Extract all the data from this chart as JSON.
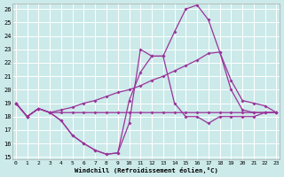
{
  "xlabel": "Windchill (Refroidissement éolien,°C)",
  "xlim": [
    -0.3,
    23.3
  ],
  "ylim": [
    14.8,
    26.4
  ],
  "yticks": [
    15,
    16,
    17,
    18,
    19,
    20,
    21,
    22,
    23,
    24,
    25,
    26
  ],
  "xticks": [
    0,
    1,
    2,
    3,
    4,
    5,
    6,
    7,
    8,
    9,
    10,
    11,
    12,
    13,
    14,
    15,
    16,
    17,
    18,
    19,
    20,
    21,
    22,
    23
  ],
  "background_color": "#cceaea",
  "line_color": "#993399",
  "grid_color": "#ffffff",
  "line1_y": [
    19.0,
    18.0,
    18.6,
    18.3,
    17.7,
    16.6,
    16.0,
    15.5,
    15.2,
    15.3,
    17.5,
    23.0,
    22.5,
    22.5,
    19.0,
    18.0,
    18.0,
    17.5,
    18.0,
    18.0,
    18.0,
    18.0,
    18.3,
    18.3
  ],
  "line2_y": [
    19.0,
    18.0,
    18.6,
    18.3,
    17.7,
    16.6,
    16.0,
    15.5,
    15.2,
    15.3,
    19.2,
    21.3,
    22.5,
    22.5,
    24.3,
    26.0,
    26.3,
    25.2,
    22.8,
    20.0,
    18.5,
    18.3,
    18.3,
    18.3
  ],
  "line3_y": [
    19.0,
    18.0,
    18.6,
    18.3,
    18.3,
    18.3,
    18.3,
    18.3,
    18.3,
    18.3,
    18.3,
    18.3,
    18.3,
    18.3,
    18.3,
    18.3,
    18.3,
    18.3,
    18.3,
    18.3,
    18.3,
    18.3,
    18.3,
    18.3
  ],
  "line4_y": [
    19.0,
    18.0,
    18.6,
    18.3,
    18.5,
    18.7,
    19.0,
    19.2,
    19.5,
    19.8,
    20.0,
    20.3,
    20.7,
    21.0,
    21.4,
    21.8,
    22.2,
    22.7,
    22.8,
    20.7,
    19.2,
    19.0,
    18.8,
    18.3
  ]
}
